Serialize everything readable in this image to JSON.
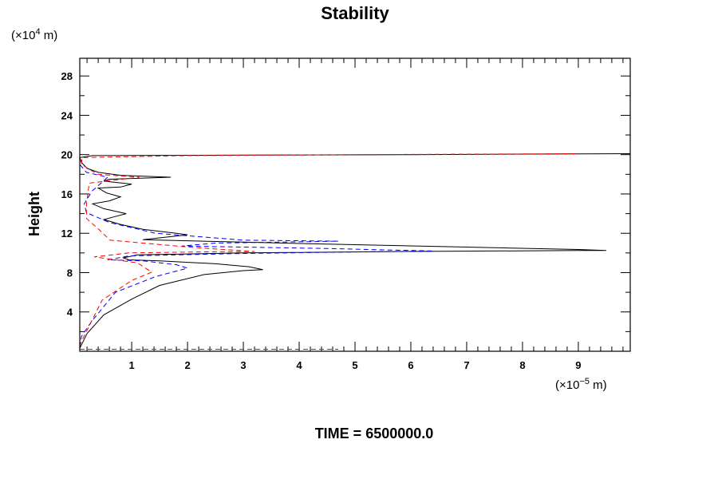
{
  "chart_data": {
    "type": "line",
    "title": "Stability",
    "ylabel": "Height",
    "y_unit_prefix": "(×10",
    "y_unit_exp": "4",
    "y_unit_suffix": " m)",
    "x_unit_prefix": "(×10",
    "x_unit_exp": "−5",
    "x_unit_suffix": " m)",
    "footer": "TIME = 6500000.0",
    "xlim": [
      0.07,
      9.93
    ],
    "ylim": [
      0,
      29.8
    ],
    "x_ticks": [
      "1",
      "2",
      "3",
      "4",
      "5",
      "6",
      "7",
      "8",
      "9"
    ],
    "y_ticks": [
      "4",
      "8",
      "12",
      "16",
      "20",
      "24",
      "28"
    ],
    "grid": false,
    "series": [
      {
        "name": "black-solid",
        "color": "#000000",
        "dash": "none",
        "points": [
          [
            0.07,
            0.3
          ],
          [
            0.2,
            1.8
          ],
          [
            0.5,
            3.7
          ],
          [
            1.0,
            5.3
          ],
          [
            1.5,
            6.7
          ],
          [
            2.3,
            7.8
          ],
          [
            3.0,
            8.2
          ],
          [
            3.35,
            8.3
          ],
          [
            3.1,
            8.6
          ],
          [
            2.5,
            8.9
          ],
          [
            1.5,
            9.2
          ],
          [
            0.95,
            9.3
          ],
          [
            0.85,
            9.5
          ],
          [
            1.1,
            9.8
          ],
          [
            3.0,
            10.0
          ],
          [
            6.0,
            10.15
          ],
          [
            9.0,
            10.25
          ],
          [
            9.5,
            10.25
          ],
          [
            9.0,
            10.35
          ],
          [
            7.0,
            10.6
          ],
          [
            4.5,
            10.9
          ],
          [
            3.0,
            11.1
          ],
          [
            1.5,
            11.3
          ],
          [
            1.2,
            11.35
          ],
          [
            2.0,
            11.85
          ],
          [
            1.8,
            12.0
          ],
          [
            1.2,
            12.4
          ],
          [
            0.8,
            12.9
          ],
          [
            0.5,
            13.4
          ],
          [
            0.7,
            13.7
          ],
          [
            0.9,
            14.0
          ],
          [
            0.5,
            14.5
          ],
          [
            0.3,
            15.0
          ],
          [
            0.6,
            15.3
          ],
          [
            0.8,
            15.7
          ],
          [
            0.55,
            16.1
          ],
          [
            0.4,
            16.6
          ],
          [
            0.8,
            16.7
          ],
          [
            1.0,
            17.0
          ],
          [
            0.5,
            17.3
          ],
          [
            0.6,
            17.5
          ],
          [
            1.7,
            17.7
          ],
          [
            0.8,
            17.9
          ],
          [
            0.4,
            18.2
          ],
          [
            0.2,
            18.6
          ],
          [
            0.1,
            19.2
          ],
          [
            0.07,
            19.7
          ],
          [
            0.3,
            19.9
          ],
          [
            3.0,
            19.95
          ],
          [
            6.0,
            20.0
          ],
          [
            9.93,
            20.1
          ]
        ]
      },
      {
        "name": "blue-dashed",
        "color": "#0000ff",
        "dash": "6,4",
        "points": [
          [
            0.07,
            0.4
          ],
          [
            0.1,
            1.5
          ],
          [
            0.29,
            3.1
          ],
          [
            0.71,
            6.0
          ],
          [
            1.43,
            7.6
          ],
          [
            2.0,
            8.45
          ],
          [
            1.8,
            8.8
          ],
          [
            1.2,
            9.2
          ],
          [
            0.57,
            9.3
          ],
          [
            0.95,
            9.7
          ],
          [
            3.0,
            9.95
          ],
          [
            5.0,
            10.1
          ],
          [
            6.4,
            10.2
          ],
          [
            4.5,
            10.45
          ],
          [
            3.0,
            10.6
          ],
          [
            1.9,
            10.7
          ],
          [
            2.5,
            11.0
          ],
          [
            4.7,
            11.2
          ],
          [
            3.0,
            11.3
          ],
          [
            1.43,
            12.0
          ],
          [
            0.6,
            13.1
          ],
          [
            0.19,
            14.1
          ],
          [
            0.15,
            15.0
          ],
          [
            0.29,
            16.3
          ],
          [
            0.57,
            17.7
          ],
          [
            0.19,
            18.2
          ],
          [
            0.07,
            19.0
          ],
          [
            0.07,
            19.6
          ]
        ]
      },
      {
        "name": "red-dashed",
        "color": "#ff0000",
        "dash": "6,4",
        "points": [
          [
            0.07,
            0.5
          ],
          [
            0.1,
            1.0
          ],
          [
            0.47,
            5.2
          ],
          [
            1.0,
            7.2
          ],
          [
            1.36,
            8.05
          ],
          [
            1.1,
            9.0
          ],
          [
            0.33,
            9.6
          ],
          [
            0.95,
            10.0
          ],
          [
            2.2,
            10.1
          ],
          [
            3.2,
            10.15
          ],
          [
            2.5,
            10.4
          ],
          [
            1.9,
            10.65
          ],
          [
            1.2,
            11.0
          ],
          [
            0.61,
            11.3
          ],
          [
            0.43,
            12.3
          ],
          [
            0.19,
            13.5
          ],
          [
            0.19,
            15.0
          ],
          [
            0.24,
            17.1
          ],
          [
            1.14,
            17.7
          ],
          [
            0.39,
            18.0
          ],
          [
            0.1,
            19.0
          ],
          [
            0.11,
            19.7
          ],
          [
            2.0,
            19.9
          ],
          [
            5.0,
            20.0
          ],
          [
            9.0,
            20.1
          ]
        ]
      },
      {
        "name": "red-dashed-baseline",
        "color": "#ff0000",
        "dash": "6,4",
        "points": [
          [
            0.07,
            0.2
          ],
          [
            4.7,
            0.2
          ]
        ]
      }
    ]
  }
}
